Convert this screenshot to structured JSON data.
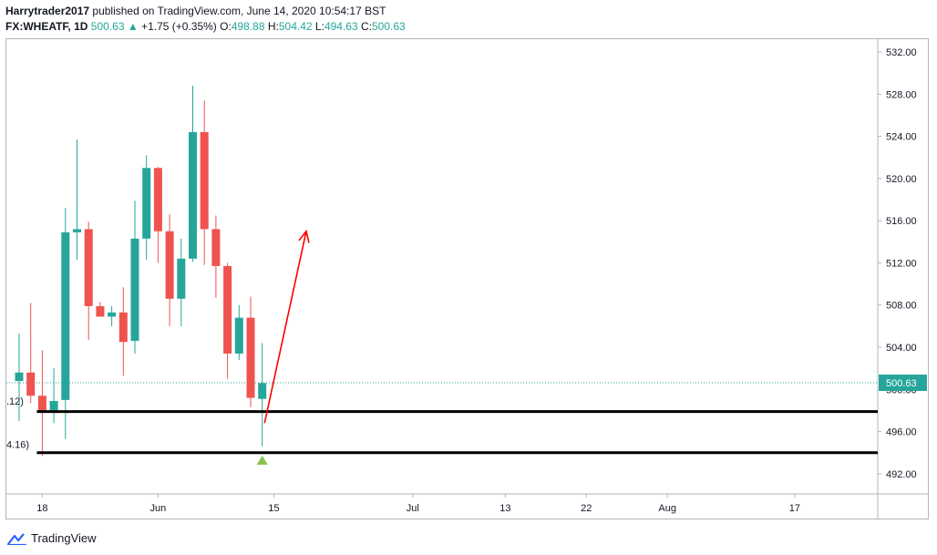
{
  "header": {
    "author": "Harrytrader2017",
    "published_text": "published on TradingView.com, June 14, 2020 10:54:17 BST",
    "symbol": "FX:WHEATF, 1D",
    "last": "500.63",
    "change_arrow": "▲",
    "change": "+1.75 (+0.35%)",
    "o_label": "O:",
    "o_value": "498.88",
    "h_label": "H:",
    "h_value": "504.42",
    "l_label": "L:",
    "l_value": "494.63",
    "c_label": "C:",
    "c_value": "500.63"
  },
  "brand": {
    "name": "TradingView"
  },
  "colors": {
    "up": "#26a69a",
    "down": "#ef5350",
    "text": "#131722",
    "grid_border": "#b2b5be",
    "arrow": "#ff0000",
    "marker": "#8bc34a"
  },
  "chart_data": {
    "type": "candlestick",
    "symbol": "FX:WHEATF",
    "interval": "1D",
    "ylim": [
      490,
      533
    ],
    "yticks": [
      "492.00",
      "496.00",
      "500.00",
      "504.00",
      "508.00",
      "512.00",
      "516.00",
      "520.00",
      "524.00",
      "528.00",
      "532.00"
    ],
    "xticks": [
      {
        "label": "18",
        "bar": 2
      },
      {
        "label": "Jun",
        "bar": 12
      },
      {
        "label": "15",
        "bar": 22
      },
      {
        "label": "Jul",
        "bar": 34
      },
      {
        "label": "13",
        "bar": 42
      },
      {
        "label": "22",
        "bar": 49
      },
      {
        "label": "Aug",
        "bar": 56
      },
      {
        "label": "17",
        "bar": 67
      }
    ],
    "candles": [
      {
        "o": 500.8,
        "h": 505.3,
        "l": 497.0,
        "c": 501.6
      },
      {
        "o": 501.6,
        "h": 508.2,
        "l": 498.7,
        "c": 499.4
      },
      {
        "o": 499.4,
        "h": 503.7,
        "l": 493.7,
        "c": 497.8
      },
      {
        "o": 497.8,
        "h": 502.0,
        "l": 496.8,
        "c": 498.9
      },
      {
        "o": 499.0,
        "h": 517.2,
        "l": 495.3,
        "c": 514.9
      },
      {
        "o": 514.9,
        "h": 523.7,
        "l": 512.3,
        "c": 515.2
      },
      {
        "o": 515.2,
        "h": 515.9,
        "l": 504.7,
        "c": 507.9
      },
      {
        "o": 507.9,
        "h": 508.3,
        "l": 506.9,
        "c": 506.9
      },
      {
        "o": 506.9,
        "h": 507.9,
        "l": 506.0,
        "c": 507.3
      },
      {
        "o": 507.3,
        "h": 509.7,
        "l": 501.3,
        "c": 504.5
      },
      {
        "o": 504.6,
        "h": 517.9,
        "l": 503.4,
        "c": 514.3
      },
      {
        "o": 514.3,
        "h": 522.2,
        "l": 512.3,
        "c": 521.0
      },
      {
        "o": 521.0,
        "h": 521.1,
        "l": 512.0,
        "c": 515.0
      },
      {
        "o": 515.0,
        "h": 516.6,
        "l": 506.0,
        "c": 508.6
      },
      {
        "o": 508.6,
        "h": 514.3,
        "l": 506.0,
        "c": 512.4
      },
      {
        "o": 512.4,
        "h": 528.8,
        "l": 512.1,
        "c": 524.4
      },
      {
        "o": 524.4,
        "h": 527.4,
        "l": 511.8,
        "c": 515.2
      },
      {
        "o": 515.2,
        "h": 516.5,
        "l": 508.7,
        "c": 511.7
      },
      {
        "o": 511.7,
        "h": 512.0,
        "l": 501.0,
        "c": 503.4
      },
      {
        "o": 503.4,
        "h": 508.0,
        "l": 502.8,
        "c": 506.8
      },
      {
        "o": 506.8,
        "h": 508.8,
        "l": 498.3,
        "c": 499.2
      },
      {
        "o": 499.1,
        "h": 504.4,
        "l": 494.6,
        "c": 500.6
      }
    ],
    "last_price": 500.63,
    "last_price_label": "500.63",
    "partial_labels": [
      {
        "text": ".12)",
        "price": 498.9
      },
      {
        "text": "4.16)",
        "price": 494.8
      }
    ],
    "horizontal_lines": [
      {
        "price": 497.9,
        "from_bar": 2
      },
      {
        "price": 494.0,
        "from_bar": 2
      }
    ],
    "arrow": {
      "from_bar": 21.2,
      "from_price": 496.8,
      "to_bar": 24.8,
      "to_price": 515.0
    },
    "marker": {
      "type": "triangle-up",
      "bar": 21,
      "price": 493.3
    }
  }
}
